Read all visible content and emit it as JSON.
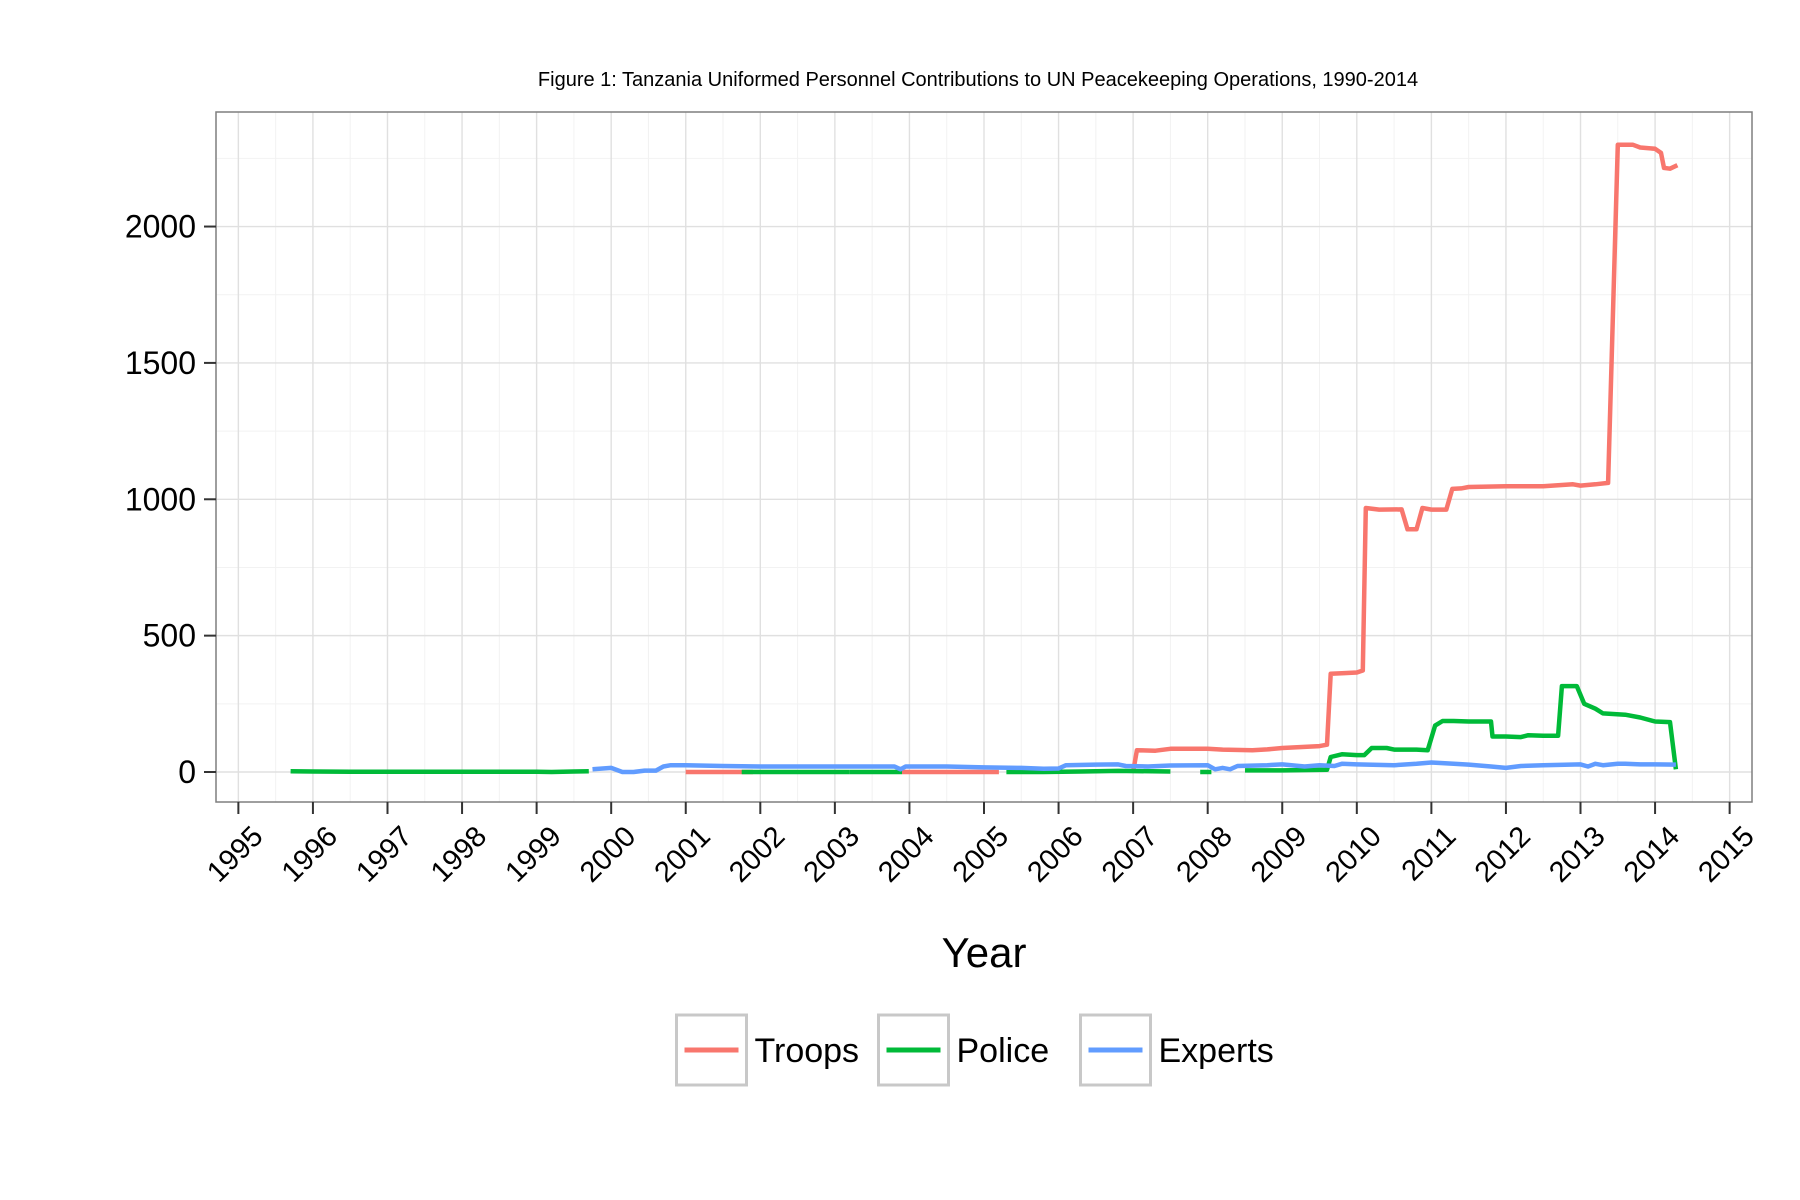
{
  "chart_data": {
    "type": "line",
    "title": "Figure 1: Tanzania Uniformed Personnel Contributions to UN Peacekeeping Operations, 1990-2014",
    "xlabel": "Year",
    "ylabel": "",
    "xlim": [
      1994.7,
      2015.3
    ],
    "ylim": [
      -110,
      2420
    ],
    "x_ticks": [
      "1995",
      "1996",
      "1997",
      "1998",
      "1999",
      "2000",
      "2001",
      "2002",
      "2003",
      "2004",
      "2005",
      "2006",
      "2007",
      "2008",
      "2009",
      "2010",
      "2011",
      "2012",
      "2013",
      "2014",
      "2015"
    ],
    "y_ticks": [
      0,
      500,
      1000,
      1500,
      2000
    ],
    "y_tick_labels": [
      "0",
      "500",
      "1000",
      "1500",
      "2000"
    ],
    "grid": true,
    "legend_position": "bottom",
    "series": [
      {
        "name": "Troops",
        "color": "#F8766D",
        "segments": [
          [
            [
              2001.0,
              0
            ],
            [
              2001.5,
              0
            ],
            [
              2001.9,
              0
            ]
          ],
          [
            [
              2003.9,
              0
            ],
            [
              2004.5,
              0
            ],
            [
              2005.2,
              0
            ]
          ],
          [
            [
              2007.0,
              0
            ],
            [
              2007.05,
              80
            ],
            [
              2007.3,
              78
            ],
            [
              2007.5,
              85
            ],
            [
              2008.0,
              85
            ],
            [
              2008.2,
              82
            ],
            [
              2008.6,
              80
            ],
            [
              2008.8,
              83
            ],
            [
              2009.0,
              88
            ],
            [
              2009.3,
              92
            ],
            [
              2009.5,
              95
            ],
            [
              2009.6,
              100
            ],
            [
              2009.65,
              360
            ],
            [
              2009.8,
              362
            ],
            [
              2010.0,
              365
            ],
            [
              2010.08,
              372
            ],
            [
              2010.12,
              968
            ],
            [
              2010.3,
              962
            ],
            [
              2010.6,
              963
            ],
            [
              2010.68,
              890
            ],
            [
              2010.8,
              890
            ],
            [
              2010.88,
              968
            ],
            [
              2011.0,
              962
            ],
            [
              2011.2,
              962
            ],
            [
              2011.28,
              1038
            ],
            [
              2011.4,
              1040
            ],
            [
              2011.5,
              1045
            ],
            [
              2012.0,
              1048
            ],
            [
              2012.5,
              1048
            ],
            [
              2012.9,
              1055
            ],
            [
              2013.0,
              1050
            ],
            [
              2013.2,
              1055
            ],
            [
              2013.37,
              1060
            ],
            [
              2013.5,
              2300
            ],
            [
              2013.7,
              2300
            ],
            [
              2013.8,
              2290
            ],
            [
              2014.0,
              2285
            ],
            [
              2014.08,
              2270
            ],
            [
              2014.12,
              2215
            ],
            [
              2014.2,
              2212
            ],
            [
              2014.3,
              2225
            ]
          ]
        ]
      },
      {
        "name": "Police",
        "color": "#00BA38",
        "segments": [
          [
            [
              1995.7,
              3
            ],
            [
              1996.0,
              2
            ],
            [
              1996.5,
              1
            ],
            [
              1997.0,
              1
            ],
            [
              1998.0,
              1
            ],
            [
              1999.0,
              1
            ],
            [
              1999.2,
              0
            ],
            [
              1999.5,
              2
            ],
            [
              1999.7,
              3
            ]
          ],
          [
            [
              2001.75,
              0
            ],
            [
              2002.5,
              0
            ],
            [
              2003.2,
              0
            ]
          ],
          [
            [
              2003.2,
              0
            ],
            [
              2003.9,
              0
            ]
          ],
          [
            [
              2005.3,
              0
            ],
            [
              2005.8,
              0
            ],
            [
              2006.3,
              2
            ],
            [
              2006.8,
              4
            ],
            [
              2007.5,
              2
            ]
          ],
          [
            [
              2007.9,
              0
            ],
            [
              2008.05,
              0
            ]
          ],
          [
            [
              2008.5,
              6
            ],
            [
              2009.0,
              6
            ],
            [
              2009.6,
              8
            ],
            [
              2009.65,
              55
            ],
            [
              2009.8,
              65
            ],
            [
              2010.0,
              62
            ],
            [
              2010.1,
              62
            ],
            [
              2010.2,
              88
            ],
            [
              2010.4,
              88
            ],
            [
              2010.5,
              82
            ],
            [
              2010.8,
              82
            ],
            [
              2010.95,
              80
            ],
            [
              2011.05,
              170
            ],
            [
              2011.15,
              187
            ],
            [
              2011.3,
              187
            ],
            [
              2011.5,
              185
            ],
            [
              2011.8,
              185
            ],
            [
              2011.82,
              130
            ],
            [
              2012.0,
              130
            ],
            [
              2012.2,
              128
            ],
            [
              2012.3,
              135
            ],
            [
              2012.5,
              133
            ],
            [
              2012.7,
              133
            ],
            [
              2012.75,
              315
            ],
            [
              2012.95,
              315
            ],
            [
              2013.05,
              250
            ],
            [
              2013.2,
              232
            ],
            [
              2013.3,
              215
            ],
            [
              2013.6,
              210
            ],
            [
              2013.8,
              200
            ],
            [
              2014.0,
              185
            ],
            [
              2014.2,
              183
            ],
            [
              2014.28,
              10
            ]
          ]
        ]
      },
      {
        "name": "Experts",
        "color": "#619CFF",
        "segments": [
          [
            [
              1999.75,
              10
            ],
            [
              2000.0,
              15
            ],
            [
              2000.15,
              0
            ],
            [
              2000.3,
              0
            ],
            [
              2000.45,
              5
            ],
            [
              2000.6,
              5
            ],
            [
              2000.7,
              20
            ],
            [
              2000.8,
              25
            ],
            [
              2001.0,
              25
            ],
            [
              2001.5,
              22
            ],
            [
              2002.0,
              20
            ],
            [
              2003.0,
              20
            ],
            [
              2003.8,
              20
            ],
            [
              2003.88,
              10
            ],
            [
              2003.95,
              20
            ],
            [
              2004.5,
              20
            ],
            [
              2005.0,
              17
            ],
            [
              2005.5,
              15
            ],
            [
              2005.8,
              12
            ],
            [
              2006.0,
              13
            ],
            [
              2006.1,
              25
            ],
            [
              2006.5,
              27
            ],
            [
              2006.8,
              28
            ],
            [
              2006.9,
              22
            ],
            [
              2007.2,
              20
            ],
            [
              2007.5,
              24
            ],
            [
              2008.0,
              25
            ],
            [
              2008.1,
              10
            ],
            [
              2008.2,
              15
            ],
            [
              2008.3,
              10
            ],
            [
              2008.4,
              22
            ],
            [
              2008.8,
              25
            ],
            [
              2009.0,
              28
            ],
            [
              2009.3,
              20
            ],
            [
              2009.5,
              25
            ],
            [
              2009.7,
              22
            ],
            [
              2009.8,
              30
            ],
            [
              2010.0,
              28
            ],
            [
              2010.5,
              25
            ],
            [
              2010.8,
              30
            ],
            [
              2011.0,
              35
            ],
            [
              2011.3,
              30
            ],
            [
              2011.5,
              27
            ],
            [
              2011.8,
              20
            ],
            [
              2012.0,
              15
            ],
            [
              2012.2,
              22
            ],
            [
              2012.5,
              25
            ],
            [
              2013.0,
              28
            ],
            [
              2013.1,
              20
            ],
            [
              2013.2,
              30
            ],
            [
              2013.3,
              25
            ],
            [
              2013.5,
              30
            ],
            [
              2013.6,
              30
            ],
            [
              2013.8,
              28
            ],
            [
              2014.0,
              28
            ],
            [
              2014.28,
              27
            ]
          ]
        ]
      }
    ]
  }
}
